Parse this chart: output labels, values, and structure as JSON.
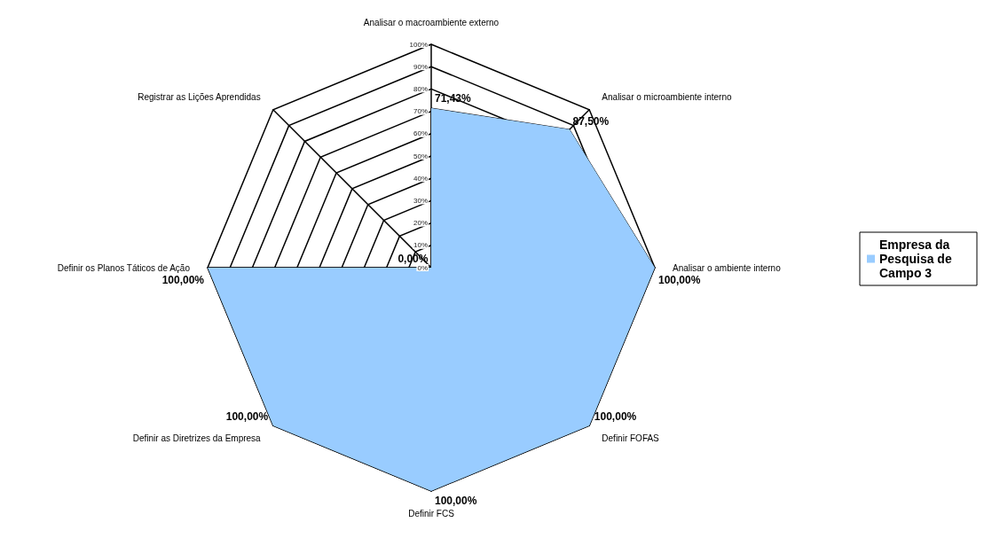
{
  "chart_data": {
    "type": "radar",
    "categories": [
      "Analisar o macroambiente externo",
      "Analisar o microambiente interno",
      "Analisar o ambiente interno",
      "Definir FOFAS",
      "Definir FCS",
      "Definir as Diretrizes da Empresa",
      "Definir os Planos Táticos de Ação",
      "Registrar as Lições Aprendidas"
    ],
    "series": [
      {
        "name": "Empresa da Pesquisa de Campo 3",
        "color": "#99ccff",
        "values": [
          71.43,
          87.5,
          100,
          100,
          100,
          100,
          100,
          0
        ],
        "value_labels": [
          "71,43%",
          "87,50%",
          "100,00%",
          "100,00%",
          "100,00%",
          "100,00%",
          "100,00%",
          "0,00%"
        ]
      }
    ],
    "ylim": [
      0,
      100
    ],
    "yticks": [
      {
        "value": 0,
        "label": "0%"
      },
      {
        "value": 10,
        "label": "10%"
      },
      {
        "value": 20,
        "label": "20%"
      },
      {
        "value": 30,
        "label": "30%"
      },
      {
        "value": 40,
        "label": "40%"
      },
      {
        "value": 50,
        "label": "50%"
      },
      {
        "value": 60,
        "label": "60%"
      },
      {
        "value": 70,
        "label": "70%"
      },
      {
        "value": 80,
        "label": "80%"
      },
      {
        "value": 90,
        "label": "90%"
      },
      {
        "value": 100,
        "label": "100%"
      }
    ],
    "legend": "right"
  }
}
